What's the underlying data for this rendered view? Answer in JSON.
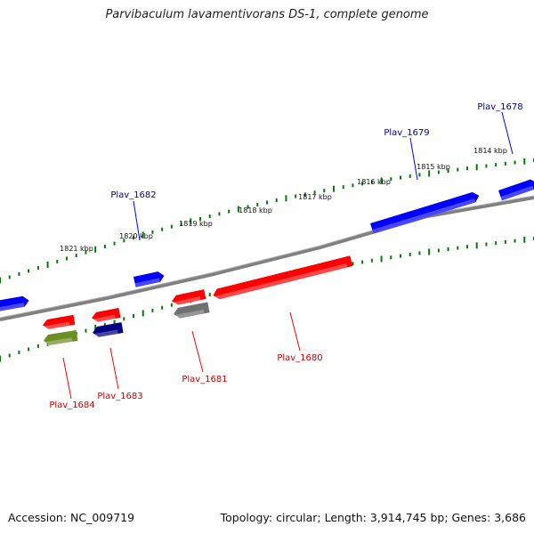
{
  "title": "Parvibaculum lavamentivorans DS-1, complete genome",
  "footer": {
    "accession": "Accession: NC_009719",
    "summary": "Topology: circular; Length: 3,914,745 bp; Genes: 3,686"
  },
  "colors": {
    "forward_strand": "#0000ff",
    "reverse_strand": "#ff0000",
    "dark_blue": "#000080",
    "olive": "#6b8e23",
    "grey": "#707070",
    "backbone": "#808080",
    "tick": "#008000",
    "forward_label": "#00008b",
    "reverse_label": "#cc0000"
  },
  "scale_ticks": [
    "1821 kbp",
    "1820 kbp",
    "1819 kbp",
    "1818 kbp",
    "1817 kbp",
    "1816 kbp",
    "1815 kbp",
    "1814 kbp"
  ],
  "forward_labels": [
    "Plav_1682",
    "Plav_1679",
    "Plav_1678"
  ],
  "reverse_labels": [
    "Plav_1684",
    "Plav_1683",
    "Plav_1681",
    "Plav_1680"
  ],
  "genes": [
    {
      "strand": "forward",
      "color": "forward_strand"
    },
    {
      "strand": "forward",
      "color": "forward_strand",
      "name": "Plav_1682"
    },
    {
      "strand": "forward",
      "color": "forward_strand",
      "name": "Plav_1679"
    },
    {
      "strand": "forward",
      "color": "forward_strand",
      "name": "Plav_1678"
    },
    {
      "strand": "reverse",
      "color": "reverse_strand",
      "name": "Plav_1684"
    },
    {
      "strand": "reverse",
      "color": "reverse_strand",
      "name": "Plav_1683"
    },
    {
      "strand": "reverse",
      "color": "reverse_strand",
      "name": "Plav_1681"
    },
    {
      "strand": "reverse",
      "color": "reverse_strand",
      "name": "Plav_1680"
    },
    {
      "strand": "reverse",
      "color": "olive"
    },
    {
      "strand": "reverse",
      "color": "dark_blue"
    },
    {
      "strand": "reverse",
      "color": "grey"
    }
  ]
}
